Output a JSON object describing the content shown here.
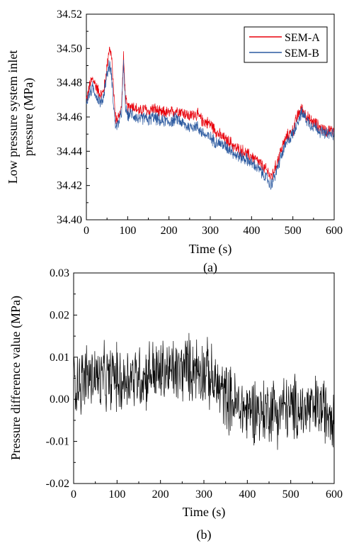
{
  "colors": {
    "sem_a": "#e8000b",
    "sem_b": "#2c5aa0",
    "diff": "#000000"
  },
  "chart_data": [
    {
      "type": "line",
      "caption": "(a)",
      "xlabel": "Time (s)",
      "ylabel_line1": "Low pressure system inlet",
      "ylabel_line2": "pressure (MPa)",
      "xlim": [
        0,
        600
      ],
      "ylim": [
        34.4,
        34.52
      ],
      "xticks": [
        "0",
        "100",
        "200",
        "300",
        "400",
        "500",
        "600"
      ],
      "yticks": [
        "34.40",
        "34.42",
        "34.44",
        "34.46",
        "34.48",
        "34.50",
        "34.52"
      ],
      "legend_position": "top-right",
      "series": [
        {
          "name": "SEM-A",
          "x": [
            0,
            5,
            10,
            15,
            20,
            25,
            30,
            35,
            40,
            45,
            50,
            55,
            60,
            65,
            70,
            75,
            80,
            85,
            90,
            95,
            100,
            110,
            120,
            130,
            140,
            150,
            160,
            170,
            180,
            190,
            200,
            210,
            220,
            230,
            240,
            250,
            260,
            270,
            280,
            290,
            300,
            310,
            320,
            330,
            340,
            350,
            360,
            370,
            380,
            390,
            400,
            410,
            420,
            430,
            440,
            445,
            450,
            460,
            470,
            480,
            490,
            500,
            510,
            520,
            530,
            540,
            550,
            560,
            570,
            580,
            590,
            600
          ],
          "y": [
            34.47,
            34.475,
            34.48,
            34.482,
            34.48,
            34.477,
            34.475,
            34.473,
            34.474,
            34.48,
            34.49,
            34.5,
            34.497,
            34.48,
            34.46,
            34.458,
            34.462,
            34.465,
            34.495,
            34.47,
            34.465,
            34.467,
            34.465,
            34.463,
            34.465,
            34.463,
            34.465,
            34.464,
            34.462,
            34.463,
            34.462,
            34.463,
            34.464,
            34.463,
            34.462,
            34.46,
            34.462,
            34.461,
            34.458,
            34.457,
            34.456,
            34.453,
            34.45,
            34.448,
            34.446,
            34.445,
            34.442,
            34.441,
            34.44,
            34.438,
            34.437,
            34.435,
            34.433,
            34.43,
            34.428,
            34.425,
            34.426,
            34.432,
            34.44,
            34.446,
            34.45,
            34.452,
            34.46,
            34.465,
            34.462,
            34.458,
            34.457,
            34.455,
            34.453,
            34.452,
            34.452,
            34.452
          ]
        },
        {
          "name": "SEM-B",
          "x": [
            0,
            5,
            10,
            15,
            20,
            25,
            30,
            35,
            40,
            45,
            50,
            55,
            60,
            65,
            70,
            75,
            80,
            85,
            90,
            95,
            100,
            110,
            120,
            130,
            140,
            150,
            160,
            170,
            180,
            190,
            200,
            210,
            220,
            230,
            240,
            250,
            260,
            270,
            280,
            290,
            300,
            310,
            320,
            330,
            340,
            350,
            360,
            370,
            380,
            390,
            400,
            410,
            420,
            430,
            440,
            445,
            450,
            460,
            470,
            480,
            490,
            500,
            510,
            520,
            530,
            540,
            550,
            560,
            570,
            580,
            590,
            600
          ],
          "y": [
            34.468,
            34.472,
            34.475,
            34.477,
            34.475,
            34.472,
            34.47,
            34.468,
            34.47,
            34.478,
            34.485,
            34.49,
            34.487,
            34.47,
            34.455,
            34.455,
            34.458,
            34.462,
            34.49,
            34.465,
            34.461,
            34.462,
            34.46,
            34.458,
            34.46,
            34.458,
            34.46,
            34.459,
            34.457,
            34.458,
            34.457,
            34.458,
            34.459,
            34.457,
            34.455,
            34.454,
            34.455,
            34.454,
            34.451,
            34.449,
            34.448,
            34.446,
            34.445,
            34.444,
            34.442,
            34.441,
            34.438,
            34.437,
            34.436,
            34.435,
            34.433,
            34.431,
            34.429,
            34.426,
            34.423,
            34.42,
            34.422,
            34.428,
            34.436,
            34.442,
            34.447,
            34.45,
            34.457,
            34.462,
            34.46,
            34.456,
            34.455,
            34.453,
            34.451,
            34.45,
            34.45,
            34.45
          ]
        }
      ]
    },
    {
      "type": "line",
      "caption": "(b)",
      "xlabel": "Time (s)",
      "ylabel": "Pressure difference value (MPa)",
      "xlim": [
        0,
        600
      ],
      "ylim": [
        -0.02,
        0.03
      ],
      "xticks": [
        "0",
        "100",
        "200",
        "300",
        "400",
        "500",
        "600"
      ],
      "yticks": [
        "-0.02",
        "-0.01",
        "0.00",
        "0.01",
        "0.02",
        "0.03"
      ],
      "series": [
        {
          "x": [
            0,
            10,
            20,
            30,
            40,
            50,
            60,
            70,
            80,
            90,
            100,
            110,
            120,
            130,
            140,
            150,
            160,
            170,
            180,
            190,
            200,
            210,
            220,
            230,
            240,
            250,
            260,
            270,
            280,
            290,
            300,
            310,
            320,
            330,
            340,
            350,
            360,
            370,
            380,
            390,
            400,
            410,
            420,
            430,
            440,
            450,
            460,
            470,
            480,
            490,
            500,
            510,
            520,
            530,
            540,
            550,
            560,
            570,
            580,
            590,
            600
          ],
          "y": [
            0.004,
            0.005,
            0.004,
            0.006,
            0.005,
            0.006,
            0.004,
            0.005,
            0.004,
            0.006,
            0.005,
            0.004,
            0.005,
            0.006,
            0.005,
            0.006,
            0.005,
            0.006,
            0.007,
            0.006,
            0.006,
            0.007,
            0.006,
            0.007,
            0.006,
            0.007,
            0.008,
            0.007,
            0.008,
            0.007,
            0.007,
            0.006,
            0.004,
            0.003,
            0.002,
            0.001,
            0.0,
            -0.001,
            -0.002,
            -0.002,
            -0.003,
            -0.002,
            -0.002,
            -0.003,
            -0.003,
            -0.002,
            -0.002,
            -0.003,
            -0.002,
            -0.002,
            -0.003,
            -0.002,
            -0.002,
            -0.003,
            -0.002,
            -0.003,
            -0.002,
            -0.002,
            -0.003,
            -0.002,
            -0.003
          ]
        }
      ]
    }
  ]
}
